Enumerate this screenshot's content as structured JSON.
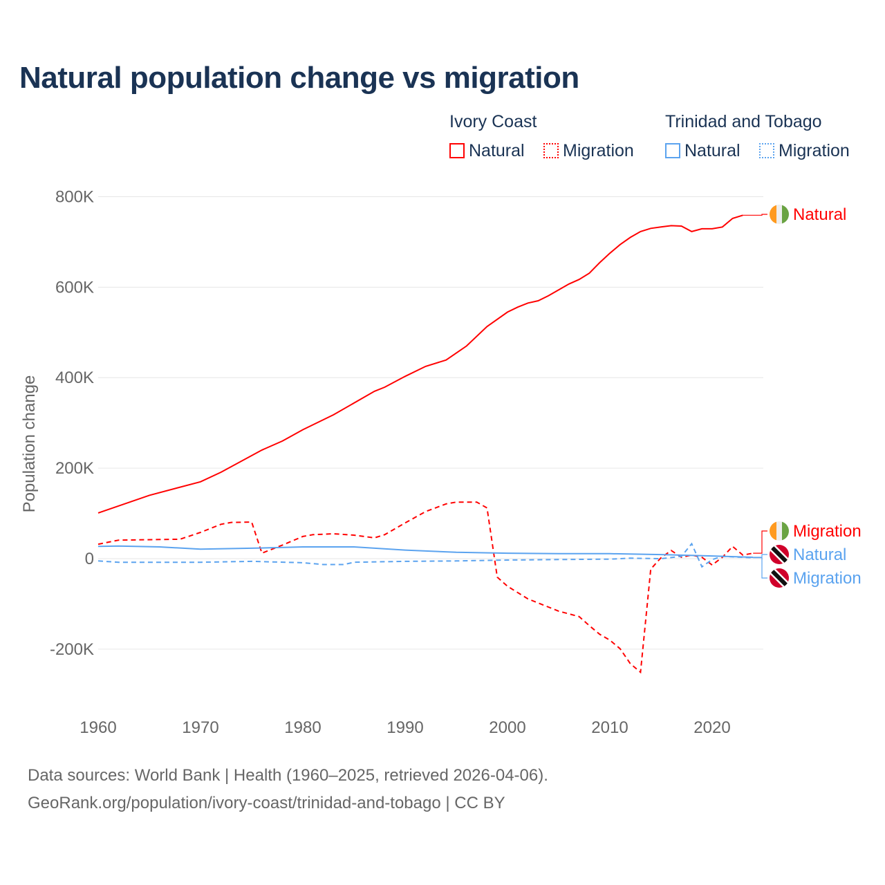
{
  "title": "Natural population change vs migration",
  "legend": {
    "groups": [
      {
        "name": "Ivory Coast",
        "items": [
          {
            "label": "Natural",
            "color": "#ff0000",
            "style": "solid"
          },
          {
            "label": "Migration",
            "color": "#ff0000",
            "style": "dotted"
          }
        ]
      },
      {
        "name": "Trinidad and Tobago",
        "items": [
          {
            "label": "Natural",
            "color": "#5ba3ef",
            "style": "solid"
          },
          {
            "label": "Migration",
            "color": "#5ba3ef",
            "style": "dotted"
          }
        ]
      }
    ]
  },
  "footer": {
    "line1": "Data sources: World Bank | Health (1960–2025, retrieved 2026-04-06).",
    "line2": "GeoRank.org/population/ivory-coast/trinidad-and-tobago | CC BY"
  },
  "chart_data": {
    "type": "line",
    "title": "Natural population change vs migration",
    "xlabel": "",
    "ylabel": "Population change",
    "xlim": [
      1960,
      2025
    ],
    "ylim": [
      -260000,
      800000
    ],
    "xticks": [
      1960,
      1970,
      1980,
      1990,
      2000,
      2010,
      2020
    ],
    "xtick_labels": [
      "1960",
      "1970",
      "1980",
      "1990",
      "2000",
      "2010",
      "2020"
    ],
    "yticks": [
      -200000,
      0,
      200000,
      400000,
      600000,
      800000
    ],
    "ytick_labels": [
      "-200K",
      "0",
      "200K",
      "400K",
      "600K",
      "800K"
    ],
    "grid": true,
    "series": [
      {
        "name": "Natural",
        "country": "Ivory Coast",
        "color": "#ff0000",
        "dash": false,
        "end_label": "Natural",
        "x": [
          1960,
          1965,
          1970,
          1972,
          1976,
          1978,
          1980,
          1983,
          1987,
          1988,
          1990,
          1992,
          1994,
          1996,
          1998,
          2000,
          2001,
          2002,
          2003,
          2004,
          2005,
          2006,
          2007,
          2008,
          2009,
          2010,
          2011,
          2012,
          2013,
          2014,
          2015,
          2016,
          2017,
          2018,
          2019,
          2020,
          2021,
          2022,
          2023
        ],
        "y": [
          101000,
          140000,
          170000,
          191000,
          240000,
          260000,
          285000,
          318000,
          370000,
          379000,
          403000,
          425000,
          439000,
          470000,
          513000,
          545000,
          556000,
          565000,
          570000,
          581000,
          594000,
          607000,
          617000,
          631000,
          654000,
          675000,
          694000,
          710000,
          723000,
          730000,
          733000,
          736000,
          735000,
          723000,
          729000,
          729000,
          733000,
          752000,
          759000
        ]
      },
      {
        "name": "Migration",
        "country": "Ivory Coast",
        "color": "#ff0000",
        "dash": true,
        "end_label": "Migration",
        "x": [
          1960,
          1962,
          1968,
          1970,
          1972,
          1973,
          1975,
          1976,
          1978,
          1980,
          1981,
          1983,
          1985,
          1987,
          1988,
          1990,
          1992,
          1994,
          1995,
          1997,
          1998,
          1999,
          2000,
          2002,
          2004,
          2005,
          2007,
          2008,
          2009,
          2010,
          2011,
          2012,
          2013,
          2014,
          2015,
          2016,
          2017,
          2018,
          2019,
          2020,
          2021,
          2022,
          2023,
          2024
        ],
        "y": [
          32000,
          41000,
          43000,
          58000,
          76000,
          80000,
          81000,
          12000,
          30000,
          49000,
          53000,
          55000,
          52000,
          46000,
          53000,
          79000,
          104000,
          121000,
          125000,
          125000,
          112000,
          -41000,
          -61000,
          -89000,
          -107000,
          -116000,
          -128000,
          -148000,
          -167000,
          -180000,
          -199000,
          -232000,
          -251000,
          -23000,
          2000,
          18000,
          3000,
          8000,
          3000,
          -14000,
          3000,
          27000,
          8000,
          12000
        ]
      },
      {
        "name": "Natural",
        "country": "Trinidad and Tobago",
        "color": "#5ba3ef",
        "dash": false,
        "end_label": "Natural",
        "x": [
          1960,
          1962,
          1966,
          1970,
          1975,
          1980,
          1985,
          1990,
          1995,
          2000,
          2005,
          2010,
          2015,
          2020,
          2024
        ],
        "y": [
          27000,
          28000,
          26000,
          21000,
          23000,
          26000,
          26000,
          19000,
          14000,
          12000,
          11000,
          11000,
          9000,
          6000,
          3000
        ]
      },
      {
        "name": "Migration",
        "country": "Trinidad and Tobago",
        "color": "#5ba3ef",
        "dash": true,
        "end_label": "Migration",
        "x": [
          1960,
          1962,
          1970,
          1975,
          1980,
          1982,
          1984,
          1985,
          1990,
          1995,
          2000,
          2005,
          2010,
          2012,
          2015,
          2017,
          2018,
          2019,
          2020,
          2021,
          2022,
          2024
        ],
        "y": [
          -5000,
          -8000,
          -8000,
          -6000,
          -9000,
          -13000,
          -13000,
          -8000,
          -6000,
          -5000,
          -3000,
          -2000,
          -1000,
          1000,
          0,
          5000,
          33000,
          -18000,
          -2000,
          5000,
          4000,
          2000
        ]
      }
    ]
  }
}
